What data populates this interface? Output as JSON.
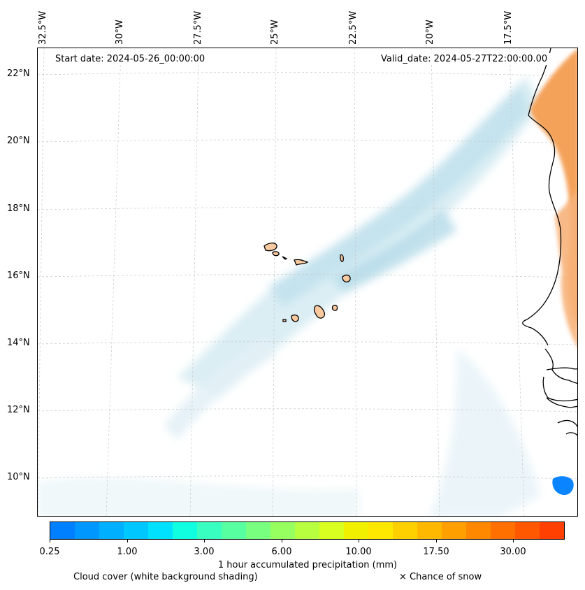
{
  "map": {
    "start_date": "Start date: 2024-05-26_00:00:00",
    "valid_date": "Valid_date: 2024-05-27T22:00:00.00",
    "lon_labels": [
      "32.5°W",
      "30°W",
      "27.5°W",
      "25°W",
      "22.5°W",
      "20°W",
      "17.5°W"
    ],
    "lat_labels": [
      "22°N",
      "20°N",
      "18°N",
      "16°N",
      "14°N",
      "12°N",
      "10°N"
    ],
    "colors": {
      "land": "#f9c9a0",
      "cloud": "#aed8e6",
      "precip_orange": "#f4a25a",
      "precip_blue": "#0a84ff",
      "grid": "#c8c8c8"
    }
  },
  "colorbar": {
    "label": "1 hour accumulated precipitation (mm)",
    "ticks": [
      "0.25",
      "1.00",
      "3.00",
      "6.00",
      "10.00",
      "17.50",
      "30.00"
    ],
    "colors": [
      "#0080ff",
      "#0097ff",
      "#00b0ff",
      "#00c8ff",
      "#00e0ff",
      "#10ffe0",
      "#38ffc0",
      "#58ffa0",
      "#78ff80",
      "#98ff60",
      "#b8ff40",
      "#d8ff20",
      "#f0f000",
      "#ffe800",
      "#ffd000",
      "#ffb800",
      "#ffa000",
      "#ff8800",
      "#ff7000",
      "#ff5800",
      "#ff4000"
    ]
  },
  "legend": {
    "cloud_cover": "Cloud cover (white background shading)",
    "snow": "× Chance of snow"
  }
}
